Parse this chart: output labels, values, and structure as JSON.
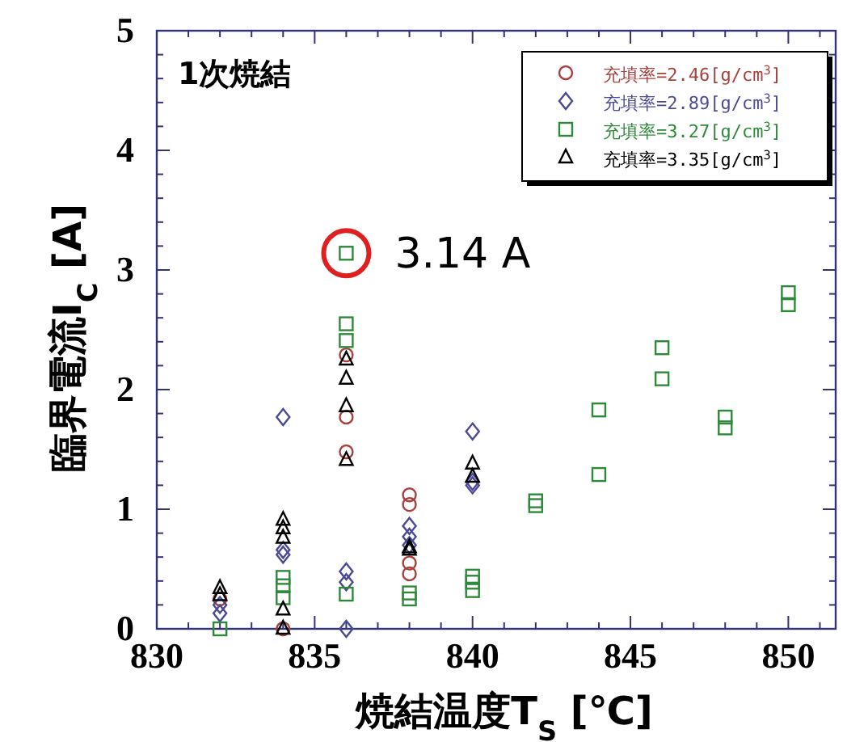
{
  "chart_data": {
    "type": "scatter",
    "xlabel": "焼結温度T$_{S}$ [℃]",
    "ylabel": "臨界電流I$_{C}$ [A]",
    "xlim": [
      830,
      851.5
    ],
    "xticks": [
      830,
      835,
      840,
      845,
      850
    ],
    "ylim": [
      0,
      5
    ],
    "yticks": [
      0,
      1,
      2,
      3,
      4,
      5
    ],
    "grid": false,
    "legend": "top right",
    "annotations": [
      "1次焼結",
      {
        "text": "3.14 A",
        "x": 836,
        "y": 3.14
      }
    ],
    "series": [
      {
        "name": "充填率=2.46[g/cm$^{3}$]",
        "color": "#a8403c",
        "marker": "circle",
        "x": [
          832,
          834,
          836,
          836,
          836,
          838,
          838,
          838,
          838
        ],
        "values": [
          0.25,
          0,
          2.29,
          1.77,
          1.48,
          1.12,
          1.04,
          0.55,
          0.46
        ]
      },
      {
        "name": "充填率=2.89[g/cm$^{3}$]",
        "color": "#4a4a96",
        "marker": "diamond",
        "x": [
          832,
          832,
          834,
          834,
          834,
          836,
          836,
          836,
          838,
          838,
          838,
          840,
          840,
          840
        ],
        "values": [
          0.2,
          0.13,
          1.77,
          0.66,
          0.62,
          0.48,
          0.39,
          0,
          0.86,
          0.77,
          0.7,
          1.65,
          1.23,
          1.2
        ]
      },
      {
        "name": "充填率=3.27[g/cm$^{3}$]",
        "color": "#2e8a3a",
        "marker": "square",
        "x": [
          832,
          834,
          834,
          834,
          836,
          836,
          836,
          836,
          838,
          838,
          840,
          840,
          840,
          842,
          842,
          844,
          844,
          846,
          846,
          848,
          848,
          850,
          850
        ],
        "values": [
          0,
          0.43,
          0.36,
          0.26,
          3.14,
          2.55,
          2.41,
          0.29,
          0.3,
          0.25,
          0.44,
          0.39,
          0.32,
          1.07,
          1.03,
          1.83,
          1.29,
          2.35,
          2.09,
          1.77,
          1.68,
          2.81,
          2.71
        ]
      },
      {
        "name": "充填率=3.35[g/cm$^{3}$]",
        "color": "#000000",
        "marker": "triangle",
        "x": [
          832,
          832,
          834,
          834,
          834,
          834,
          834,
          836,
          836,
          836,
          836,
          838,
          838,
          840,
          840
        ],
        "values": [
          0.34,
          0.28,
          0.91,
          0.84,
          0.76,
          0.16,
          0,
          2.25,
          2.09,
          1.86,
          1.41,
          0.68,
          0.66,
          1.38,
          1.27
        ]
      }
    ]
  }
}
